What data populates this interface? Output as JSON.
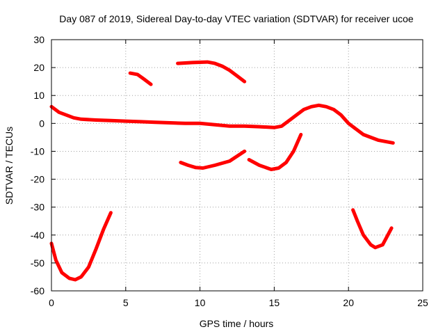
{
  "chart_data": {
    "type": "line",
    "title": "Day 087 of 2019, Sidereal Day-to-day VTEC variation (SDTVAR) for receiver ucoe",
    "xlabel": "GPS time / hours",
    "ylabel": "SDTVAR / TECUs",
    "xlim": [
      0,
      25
    ],
    "ylim": [
      -60,
      30
    ],
    "xticks": [
      0,
      5,
      10,
      15,
      20,
      25
    ],
    "yticks": [
      -60,
      -50,
      -40,
      -30,
      -20,
      -10,
      0,
      10,
      20,
      30
    ],
    "grid": true,
    "legend": "none",
    "color": "#ff0000",
    "series": [
      {
        "name": "arc-1",
        "points": [
          [
            0.0,
            6.0
          ],
          [
            0.5,
            4.0
          ],
          [
            1.0,
            3.0
          ],
          [
            1.5,
            2.0
          ],
          [
            2.0,
            1.5
          ],
          [
            3.0,
            1.2
          ],
          [
            4.0,
            1.0
          ],
          [
            5.0,
            0.8
          ],
          [
            6.0,
            0.6
          ],
          [
            7.0,
            0.4
          ],
          [
            8.0,
            0.2
          ],
          [
            9.0,
            0.0
          ],
          [
            10.0,
            0.0
          ],
          [
            11.0,
            -0.5
          ],
          [
            12.0,
            -1.0
          ],
          [
            13.0,
            -1.0
          ],
          [
            14.0,
            -1.2
          ],
          [
            15.0,
            -1.5
          ],
          [
            15.5,
            -1.0
          ],
          [
            16.0,
            1.0
          ],
          [
            16.5,
            3.0
          ],
          [
            17.0,
            5.0
          ],
          [
            17.5,
            6.0
          ],
          [
            18.0,
            6.5
          ],
          [
            18.5,
            6.0
          ],
          [
            19.0,
            5.0
          ],
          [
            19.5,
            3.0
          ],
          [
            20.0,
            0.0
          ],
          [
            20.5,
            -2.0
          ],
          [
            21.0,
            -4.0
          ],
          [
            21.5,
            -5.0
          ],
          [
            22.0,
            -6.0
          ],
          [
            22.5,
            -6.5
          ],
          [
            23.0,
            -7.0
          ]
        ]
      },
      {
        "name": "arc-2",
        "points": [
          [
            5.3,
            18.0
          ],
          [
            5.8,
            17.5
          ],
          [
            6.2,
            16.0
          ],
          [
            6.7,
            14.0
          ]
        ]
      },
      {
        "name": "arc-3",
        "points": [
          [
            8.5,
            21.5
          ],
          [
            9.5,
            21.8
          ],
          [
            10.5,
            22.0
          ],
          [
            11.0,
            21.5
          ],
          [
            11.5,
            20.5
          ],
          [
            12.0,
            19.0
          ],
          [
            12.5,
            17.0
          ],
          [
            13.0,
            15.0
          ]
        ]
      },
      {
        "name": "arc-4",
        "points": [
          [
            8.7,
            -14.0
          ],
          [
            9.2,
            -15.0
          ],
          [
            9.7,
            -15.8
          ],
          [
            10.2,
            -16.0
          ],
          [
            11.0,
            -15.0
          ],
          [
            12.0,
            -13.5
          ],
          [
            13.0,
            -10.0
          ]
        ]
      },
      {
        "name": "arc-5",
        "points": [
          [
            13.3,
            -13.0
          ],
          [
            14.0,
            -15.0
          ],
          [
            14.8,
            -16.5
          ],
          [
            15.3,
            -16.0
          ],
          [
            15.8,
            -14.0
          ],
          [
            16.3,
            -10.0
          ],
          [
            16.8,
            -4.0
          ]
        ]
      },
      {
        "name": "arc-6",
        "points": [
          [
            0.0,
            -43.0
          ],
          [
            0.3,
            -49.0
          ],
          [
            0.7,
            -53.5
          ],
          [
            1.2,
            -55.5
          ],
          [
            1.6,
            -56.0
          ],
          [
            2.0,
            -55.0
          ],
          [
            2.5,
            -51.5
          ],
          [
            3.0,
            -45.0
          ],
          [
            3.5,
            -38.0
          ],
          [
            4.0,
            -32.0
          ]
        ]
      },
      {
        "name": "arc-7",
        "points": [
          [
            20.3,
            -31.0
          ],
          [
            20.6,
            -35.0
          ],
          [
            21.0,
            -40.0
          ],
          [
            21.5,
            -43.5
          ],
          [
            21.8,
            -44.5
          ],
          [
            22.3,
            -43.5
          ],
          [
            22.9,
            -37.5
          ]
        ]
      }
    ]
  }
}
